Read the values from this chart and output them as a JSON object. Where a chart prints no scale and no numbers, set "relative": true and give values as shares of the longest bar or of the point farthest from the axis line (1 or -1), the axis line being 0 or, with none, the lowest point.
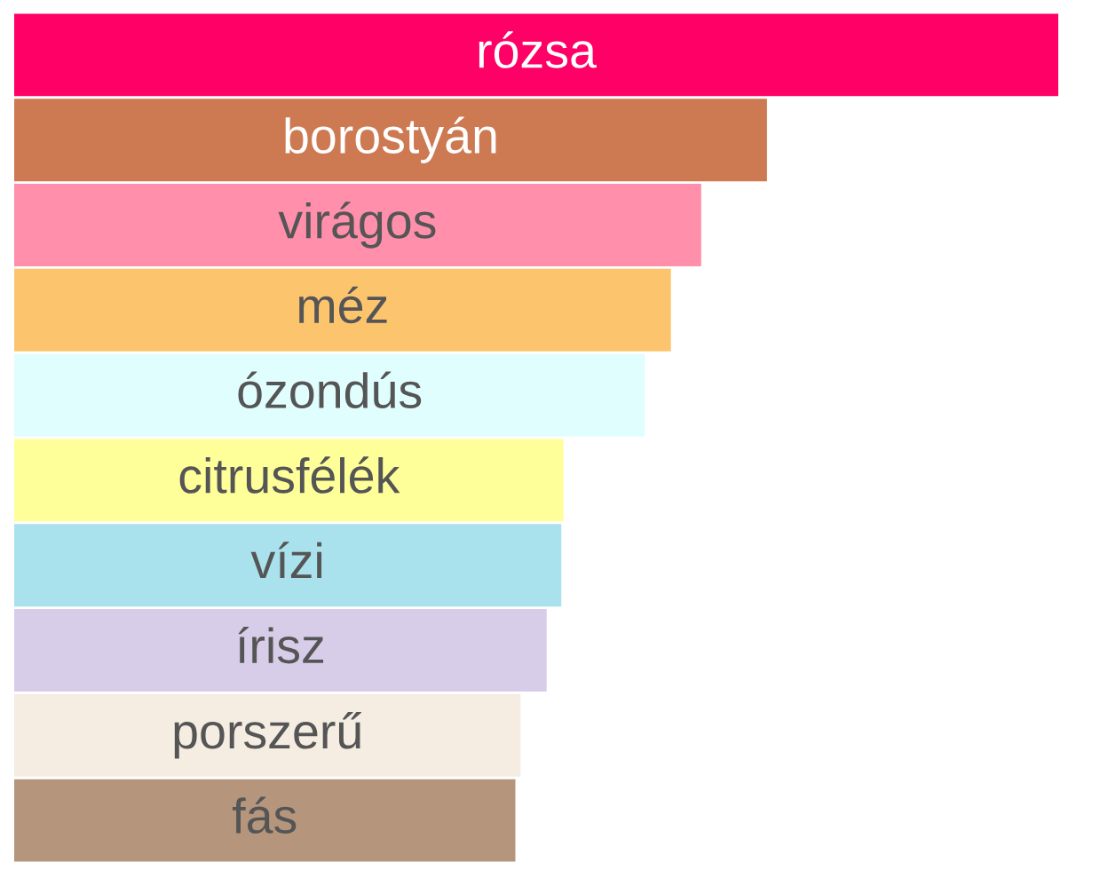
{
  "chart_data": {
    "type": "bar",
    "orientation": "horizontal",
    "relative": true,
    "categories": [
      "rózsa",
      "borostyán",
      "virágos",
      "méz",
      "ózondús",
      "citrusfélék",
      "vízi",
      "írisz",
      "porszerű",
      "fás"
    ],
    "values": [
      1,
      0.721,
      0.658,
      0.629,
      0.604,
      0.526,
      0.524,
      0.51,
      0.485,
      0.48
    ],
    "colors": [
      "#ff0066",
      "#cd7a52",
      "#ff8fab",
      "#fdc46e",
      "#e0fefe",
      "#feff99",
      "#a9e1ec",
      "#d8cde8",
      "#f5ece2",
      "#b5967d"
    ]
  }
}
